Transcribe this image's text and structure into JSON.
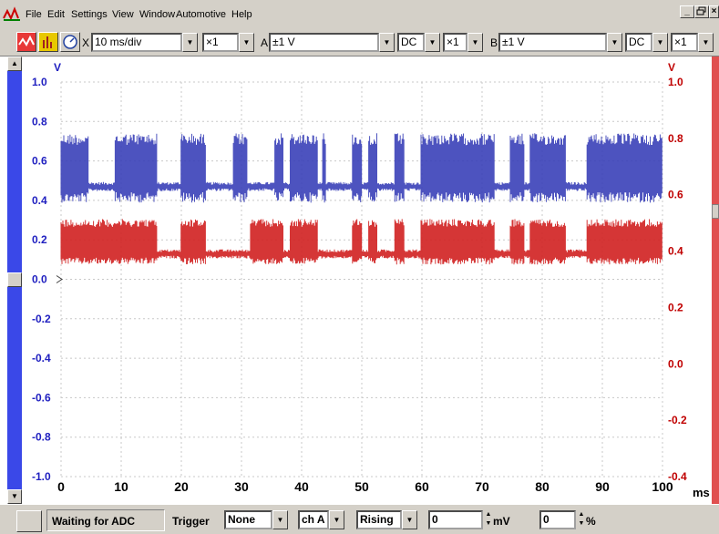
{
  "menu": {
    "items": [
      "File",
      "Edit",
      "Settings",
      "View",
      "Window",
      "Automotive",
      "Help"
    ],
    "window_controls": [
      "_",
      "×"
    ]
  },
  "toolbar": {
    "timebase": "10 ms/div",
    "x_mult": "×1",
    "ch_a_label": "A",
    "ch_a_range": "±1 V",
    "ch_a_coupling": "DC",
    "ch_a_mult": "×1",
    "ch_b_label": "B",
    "ch_b_range": "±1 V",
    "ch_b_coupling": "DC",
    "ch_b_mult": "×1",
    "x_label": "X",
    "icons": [
      "waveform-icon",
      "spectrum-icon",
      "meter-icon"
    ]
  },
  "chart_data": {
    "type": "line",
    "xlabel": "ms",
    "x_ticks": [
      0,
      10,
      20,
      30,
      40,
      50,
      60,
      70,
      80,
      90,
      100
    ],
    "xlim": [
      0,
      100
    ],
    "left_axis": {
      "unit": "V",
      "ticks": [
        "1.0",
        "0.8",
        "0.6",
        "0.4",
        "0.2",
        "0.0",
        "-0.2",
        "-0.4",
        "-0.6",
        "-0.8",
        "-1.0"
      ],
      "ylim": [
        -1.0,
        1.0
      ],
      "color": "#2020c0"
    },
    "right_axis": {
      "unit": "V",
      "ticks": [
        "1.0",
        "0.8",
        "0.6",
        "0.4",
        "0.2",
        "0.0",
        "-0.2",
        "-0.4"
      ],
      "ylim": [
        -0.4,
        1.0
      ],
      "color": "#c00000"
    },
    "grid": true,
    "series": [
      {
        "channel": "A",
        "color": "#3a40b8",
        "baseline": 0.47,
        "high": 0.71,
        "active_segments": [
          [
            0.0,
            4.6
          ],
          [
            9.0,
            16.0
          ],
          [
            19.8,
            24.0
          ],
          [
            28.6,
            30.6
          ],
          [
            29.6,
            31.0
          ],
          [
            35.4,
            37.0
          ],
          [
            38.0,
            42.6
          ],
          [
            43.4,
            44.0
          ],
          [
            48.4,
            50.0
          ],
          [
            51.0,
            52.6
          ],
          [
            55.4,
            57.0
          ],
          [
            59.8,
            72.0
          ],
          [
            74.6,
            77.0
          ],
          [
            78.0,
            84.0
          ],
          [
            87.4,
            100.0
          ]
        ]
      },
      {
        "channel": "B",
        "color": "#d02020",
        "baseline": 0.39,
        "high": 0.5,
        "active_segments": [
          [
            0.0,
            16.0
          ],
          [
            19.8,
            24.0
          ],
          [
            31.4,
            37.0
          ],
          [
            35.4,
            37.0
          ],
          [
            38.0,
            42.6
          ],
          [
            48.4,
            50.0
          ],
          [
            51.0,
            52.6
          ],
          [
            55.4,
            57.0
          ],
          [
            59.8,
            72.0
          ],
          [
            74.6,
            77.0
          ],
          [
            78.0,
            84.0
          ],
          [
            87.4,
            100.0
          ]
        ]
      }
    ]
  },
  "status": {
    "state": "Waiting for ADC",
    "trigger_label": "Trigger",
    "trigger_mode": "None",
    "trigger_channel": "ch A",
    "trigger_edge": "Rising",
    "trigger_level": "0",
    "level_unit": "mV",
    "pretrigger": "0",
    "pretrigger_unit": "%"
  }
}
